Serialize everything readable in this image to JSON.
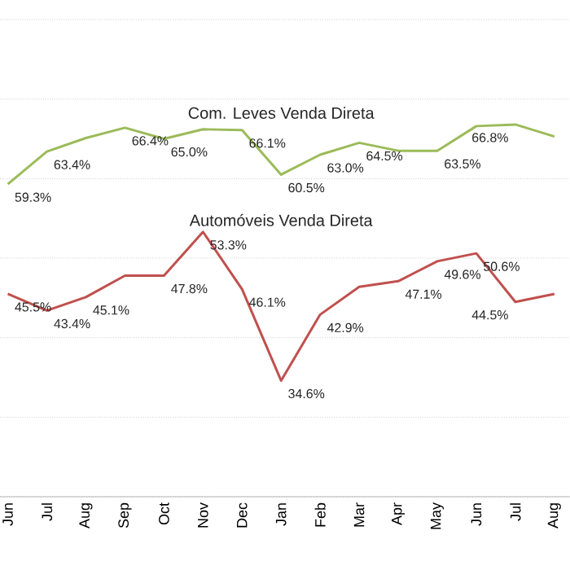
{
  "chart_data": {
    "type": "line",
    "categories": [
      "Jun",
      "Jul",
      "Aug",
      "Sep",
      "Oct",
      "Nov",
      "Dec",
      "Jan",
      "Feb",
      "Mar",
      "Apr",
      "May",
      "Jun",
      "Jul",
      "Aug"
    ],
    "series": [
      {
        "name": "Com. Leves Venda Direta",
        "color": "#9bbb59",
        "values": [
          59.3,
          63.4,
          65.1,
          66.4,
          65.0,
          66.2,
          66.1,
          60.5,
          63.0,
          64.5,
          63.5,
          63.5,
          66.6,
          66.8,
          65.3
        ],
        "value_labels": [
          "59.3%",
          "63.4%",
          null,
          "66.4%",
          "65.0%",
          null,
          "66.1%",
          "60.5%",
          "63.0%",
          "64.5%",
          null,
          "63.5%",
          null,
          "66.8%",
          null
        ]
      },
      {
        "name": "Automóveis Venda Direta",
        "color": "#c0504d",
        "values": [
          45.5,
          43.4,
          45.1,
          47.8,
          47.8,
          53.3,
          46.1,
          34.6,
          42.9,
          46.4,
          47.1,
          49.6,
          50.6,
          44.5,
          45.5
        ],
        "value_labels": [
          "45.5%",
          "43.4%",
          "45.1%",
          null,
          "47.8%",
          "53.3%",
          "46.1%",
          "34.6%",
          "42.9%",
          null,
          "47.1%",
          "49.6%",
          "50.6%",
          "44.5%",
          null
        ]
      }
    ],
    "ylim": [
      20,
      80
    ],
    "yticks": [
      {
        "value": 20,
        "label": null
      },
      {
        "value": 30,
        "label": null
      },
      {
        "value": 40,
        "label": null
      },
      {
        "value": 50,
        "label": null
      },
      {
        "value": 60,
        "label": null
      },
      {
        "value": 70,
        "label": null
      },
      {
        "value": 80,
        "label": null
      }
    ],
    "tick_labels": "x",
    "grid": "y",
    "legend": false,
    "marker": "none",
    "line_style": "solid"
  }
}
